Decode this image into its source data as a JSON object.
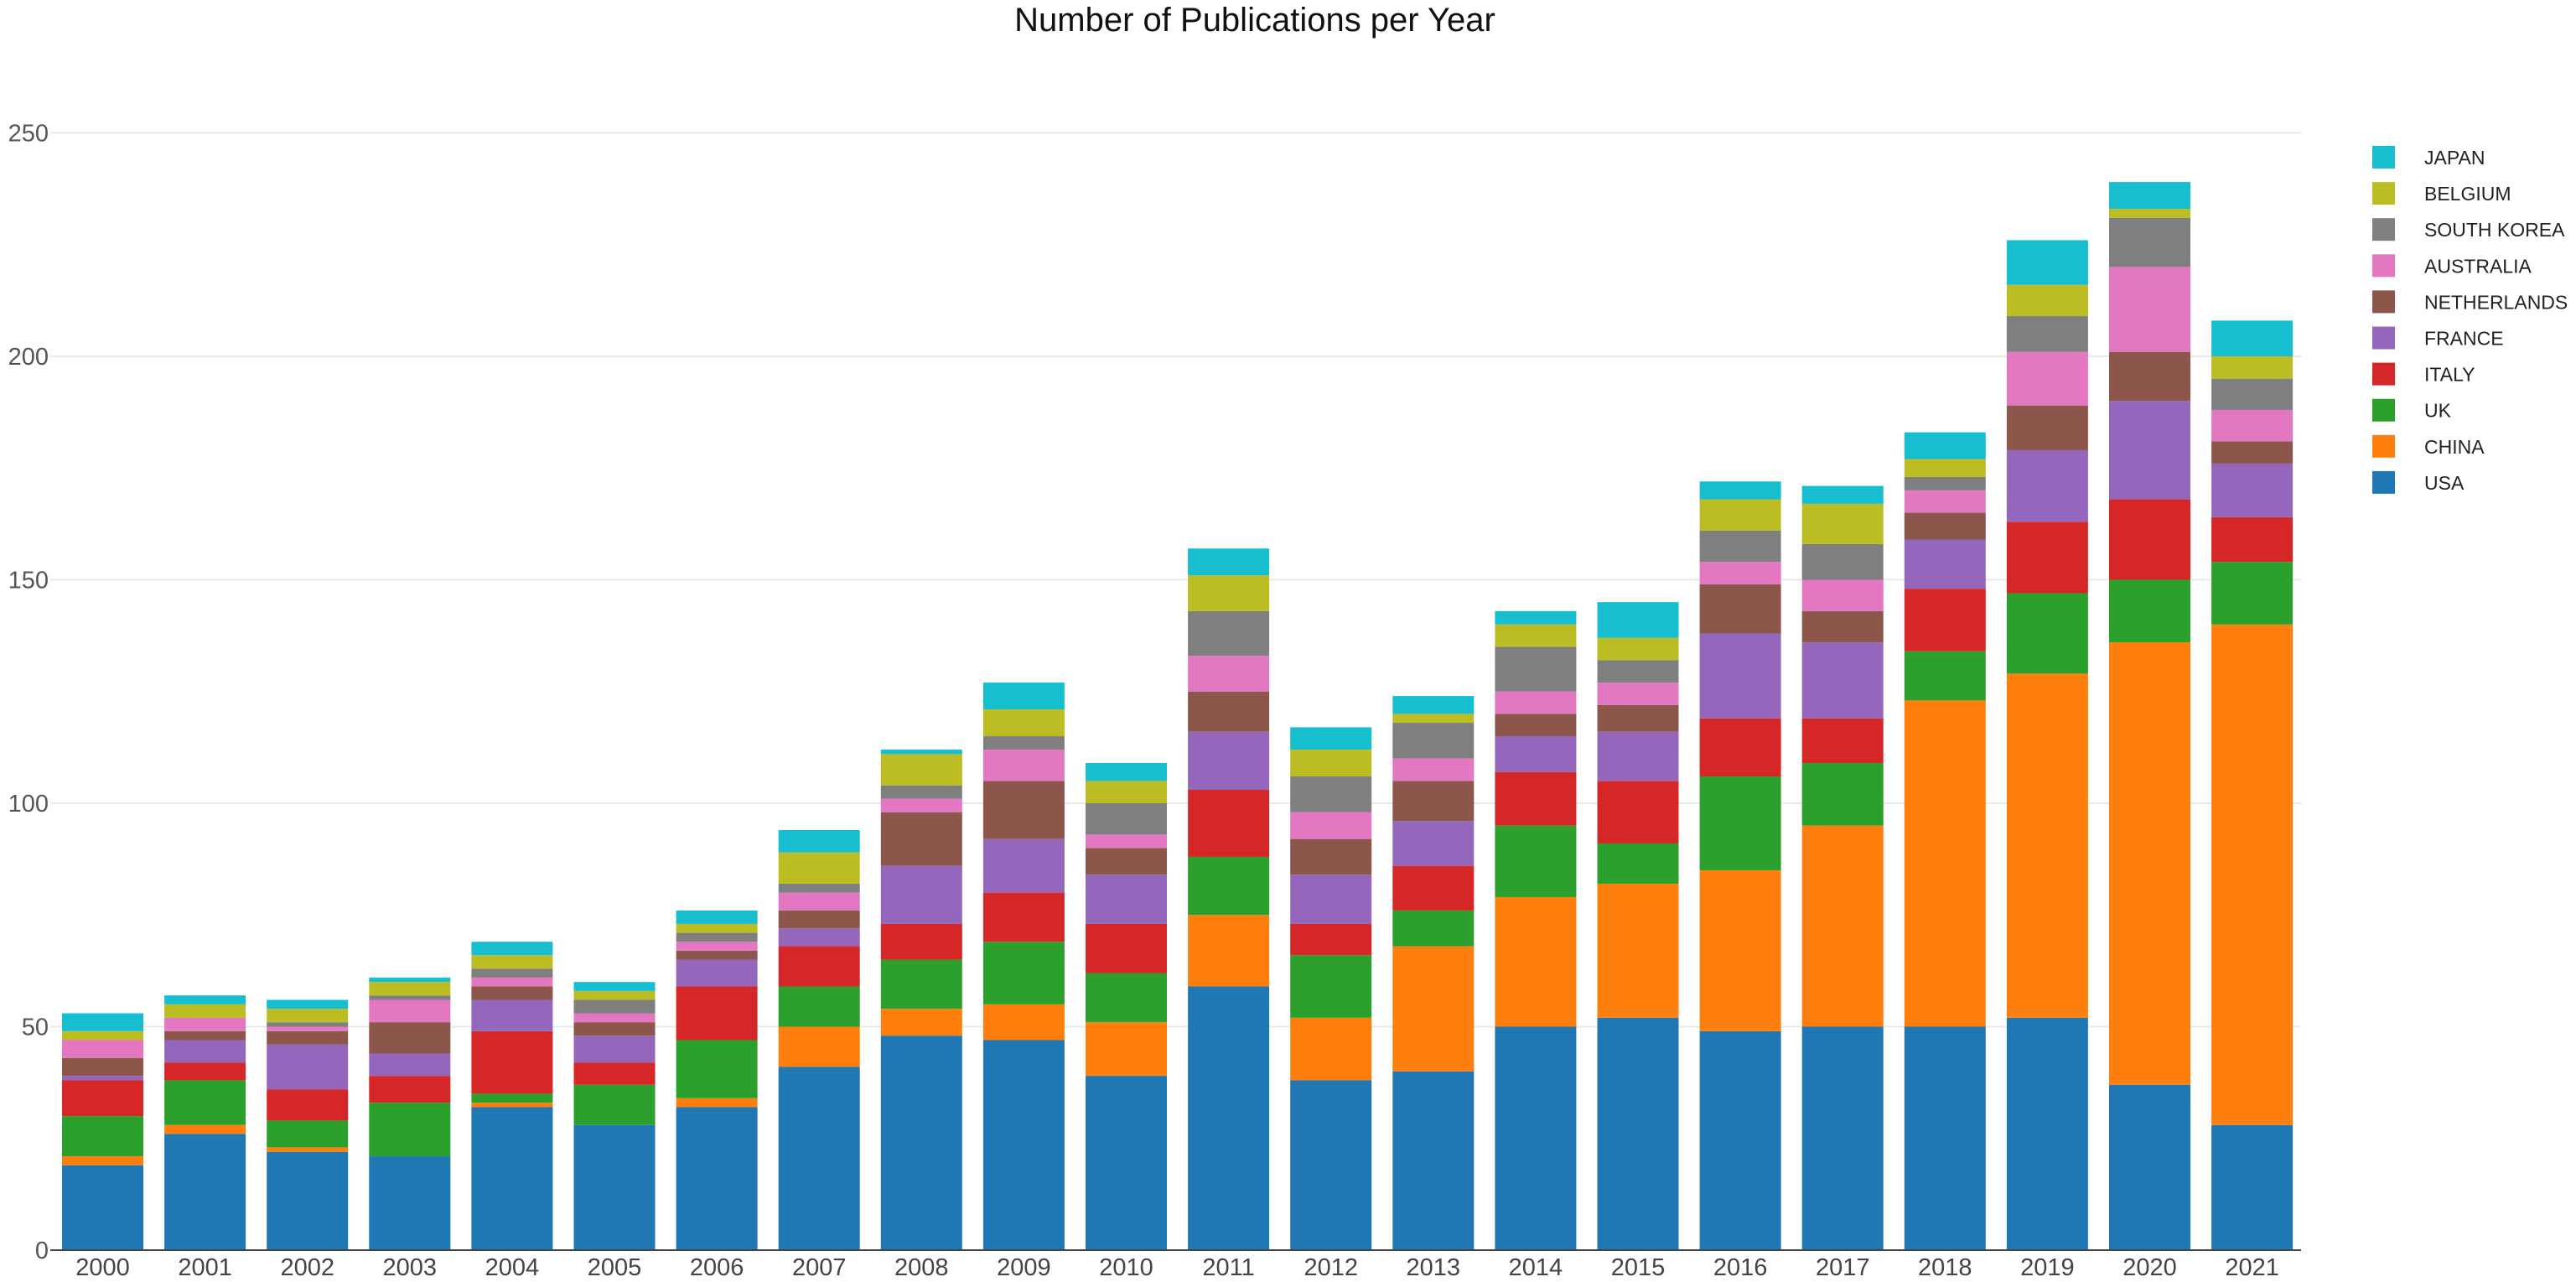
{
  "chart_data": {
    "type": "bar",
    "stacked": true,
    "title": "Number of Publications per Year",
    "xlabel": "",
    "ylabel": "",
    "ylim": [
      0,
      260
    ],
    "yticks": [
      0,
      50,
      100,
      150,
      200,
      250
    ],
    "grid": true,
    "legend_position": "right",
    "categories": [
      "2000",
      "2001",
      "2002",
      "2003",
      "2004",
      "2005",
      "2006",
      "2007",
      "2008",
      "2009",
      "2010",
      "2011",
      "2012",
      "2013",
      "2014",
      "2015",
      "2016",
      "2017",
      "2018",
      "2019",
      "2020",
      "2021"
    ],
    "series": [
      {
        "name": "USA",
        "color": "#1f77b4",
        "values": [
          19,
          26,
          22,
          21,
          32,
          28,
          32,
          41,
          48,
          47,
          39,
          59,
          38,
          40,
          50,
          52,
          49,
          50,
          50,
          52,
          37,
          28
        ]
      },
      {
        "name": "CHINA",
        "color": "#ff7f0e",
        "values": [
          2,
          2,
          1,
          0,
          1,
          0,
          2,
          9,
          6,
          8,
          12,
          16,
          14,
          28,
          29,
          30,
          36,
          45,
          73,
          77,
          99,
          112
        ]
      },
      {
        "name": "UK",
        "color": "#2ca02c",
        "values": [
          9,
          10,
          6,
          12,
          2,
          9,
          13,
          9,
          11,
          14,
          11,
          13,
          14,
          8,
          16,
          9,
          21,
          14,
          11,
          18,
          14,
          14
        ]
      },
      {
        "name": "ITALY",
        "color": "#d62728",
        "values": [
          8,
          4,
          7,
          6,
          14,
          5,
          12,
          9,
          8,
          11,
          11,
          15,
          7,
          10,
          12,
          14,
          13,
          10,
          14,
          16,
          18,
          10
        ]
      },
      {
        "name": "FRANCE",
        "color": "#9467bd",
        "values": [
          1,
          5,
          10,
          5,
          7,
          6,
          6,
          4,
          13,
          12,
          11,
          13,
          11,
          10,
          8,
          11,
          19,
          17,
          11,
          16,
          22,
          12
        ]
      },
      {
        "name": "NETHERLANDS",
        "color": "#8c564b",
        "values": [
          4,
          2,
          3,
          7,
          3,
          3,
          2,
          4,
          12,
          13,
          6,
          9,
          8,
          9,
          5,
          6,
          11,
          7,
          6,
          10,
          11,
          5
        ]
      },
      {
        "name": "AUSTRALIA",
        "color": "#e377c2",
        "values": [
          4,
          3,
          1,
          5,
          2,
          2,
          2,
          4,
          3,
          7,
          3,
          8,
          6,
          5,
          5,
          5,
          5,
          7,
          5,
          12,
          19,
          7
        ]
      },
      {
        "name": "SOUTH KOREA",
        "color": "#7f7f7f",
        "values": [
          0,
          0,
          1,
          1,
          2,
          3,
          2,
          2,
          3,
          3,
          7,
          10,
          8,
          8,
          10,
          5,
          7,
          8,
          3,
          8,
          11,
          7
        ]
      },
      {
        "name": "BELGIUM",
        "color": "#bcbd22",
        "values": [
          2,
          3,
          3,
          3,
          3,
          2,
          2,
          7,
          7,
          6,
          5,
          8,
          6,
          2,
          5,
          5,
          7,
          9,
          4,
          7,
          2,
          5
        ]
      },
      {
        "name": "JAPAN",
        "color": "#17becf",
        "values": [
          4,
          2,
          2,
          1,
          3,
          2,
          3,
          5,
          1,
          6,
          4,
          6,
          5,
          4,
          3,
          8,
          4,
          4,
          6,
          10,
          6,
          8
        ]
      }
    ]
  }
}
